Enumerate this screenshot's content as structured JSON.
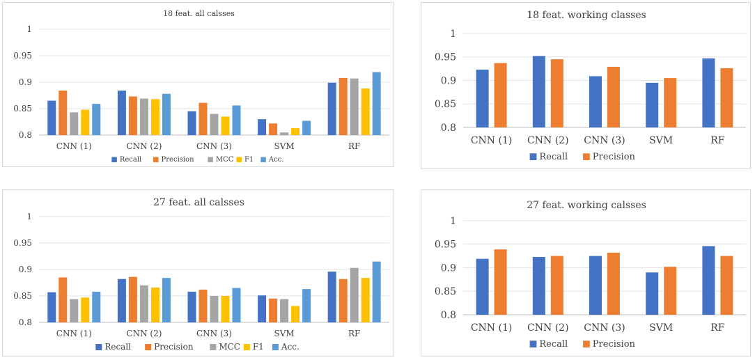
{
  "colors": {
    "Recall": "#4472c4",
    "Precision": "#ed7d31",
    "MCC": "#a5a5a5",
    "F1": "#ffc000",
    "Acc.": "#5b9bd5"
  },
  "chart_data": [
    {
      "type": "bar",
      "title": "18 feat. all calsses",
      "categories": [
        "CNN (1)",
        "CNN (2)",
        "CNN (3)",
        "SVM",
        "RF"
      ],
      "ylim": [
        0.8,
        1
      ],
      "yticks": [
        "0.8",
        "0.85",
        "0.9",
        "0.95",
        "1"
      ],
      "legend_position": "bottom",
      "series": [
        {
          "name": "Recall",
          "values": [
            0.865,
            0.884,
            0.845,
            0.83,
            0.899
          ]
        },
        {
          "name": "Precision",
          "values": [
            0.884,
            0.873,
            0.861,
            0.822,
            0.908
          ]
        },
        {
          "name": "MCC",
          "values": [
            0.843,
            0.869,
            0.84,
            0.805,
            0.907
          ]
        },
        {
          "name": "F1",
          "values": [
            0.848,
            0.868,
            0.835,
            0.813,
            0.888
          ]
        },
        {
          "name": "Acc.",
          "values": [
            0.859,
            0.878,
            0.856,
            0.827,
            0.919
          ]
        }
      ]
    },
    {
      "type": "bar",
      "title": "18 feat. working classes",
      "categories": [
        "CNN (1)",
        "CNN (2)",
        "CNN (3)",
        "SVM",
        "RF"
      ],
      "ylim": [
        0.8,
        1
      ],
      "yticks": [
        "0.8",
        "0.85",
        "0.9",
        "0.95",
        "1"
      ],
      "legend_position": "bottom",
      "series": [
        {
          "name": "Recall",
          "values": [
            0.923,
            0.952,
            0.909,
            0.895,
            0.947
          ]
        },
        {
          "name": "Precision",
          "values": [
            0.937,
            0.945,
            0.929,
            0.905,
            0.926
          ]
        }
      ]
    },
    {
      "type": "bar",
      "title": "27 feat. all calsses",
      "categories": [
        "CNN (1)",
        "CNN (2)",
        "CNN (3)",
        "SVM",
        "RF"
      ],
      "ylim": [
        0.8,
        1
      ],
      "yticks": [
        "0.8",
        "0.85",
        "0.9",
        "0.95",
        "1"
      ],
      "legend_position": "bottom",
      "series": [
        {
          "name": "Recall",
          "values": [
            0.857,
            0.882,
            0.858,
            0.851,
            0.896
          ]
        },
        {
          "name": "Precision",
          "values": [
            0.885,
            0.886,
            0.862,
            0.845,
            0.882
          ]
        },
        {
          "name": "MCC",
          "values": [
            0.844,
            0.87,
            0.85,
            0.844,
            0.903
          ]
        },
        {
          "name": "F1",
          "values": [
            0.847,
            0.866,
            0.85,
            0.831,
            0.884
          ]
        },
        {
          "name": "Acc.",
          "values": [
            0.858,
            0.884,
            0.865,
            0.863,
            0.915
          ]
        }
      ]
    },
    {
      "type": "bar",
      "title": "27 feat. working calsses",
      "categories": [
        "CNN (1)",
        "CNN (2)",
        "CNN (3)",
        "SVM",
        "RF"
      ],
      "ylim": [
        0.8,
        1
      ],
      "yticks": [
        "0.8",
        "0.85",
        "0.9",
        "0.95",
        "1"
      ],
      "legend_position": "bottom",
      "series": [
        {
          "name": "Recall",
          "values": [
            0.919,
            0.923,
            0.925,
            0.89,
            0.946
          ]
        },
        {
          "name": "Precision",
          "values": [
            0.939,
            0.925,
            0.932,
            0.902,
            0.925
          ]
        }
      ]
    }
  ]
}
